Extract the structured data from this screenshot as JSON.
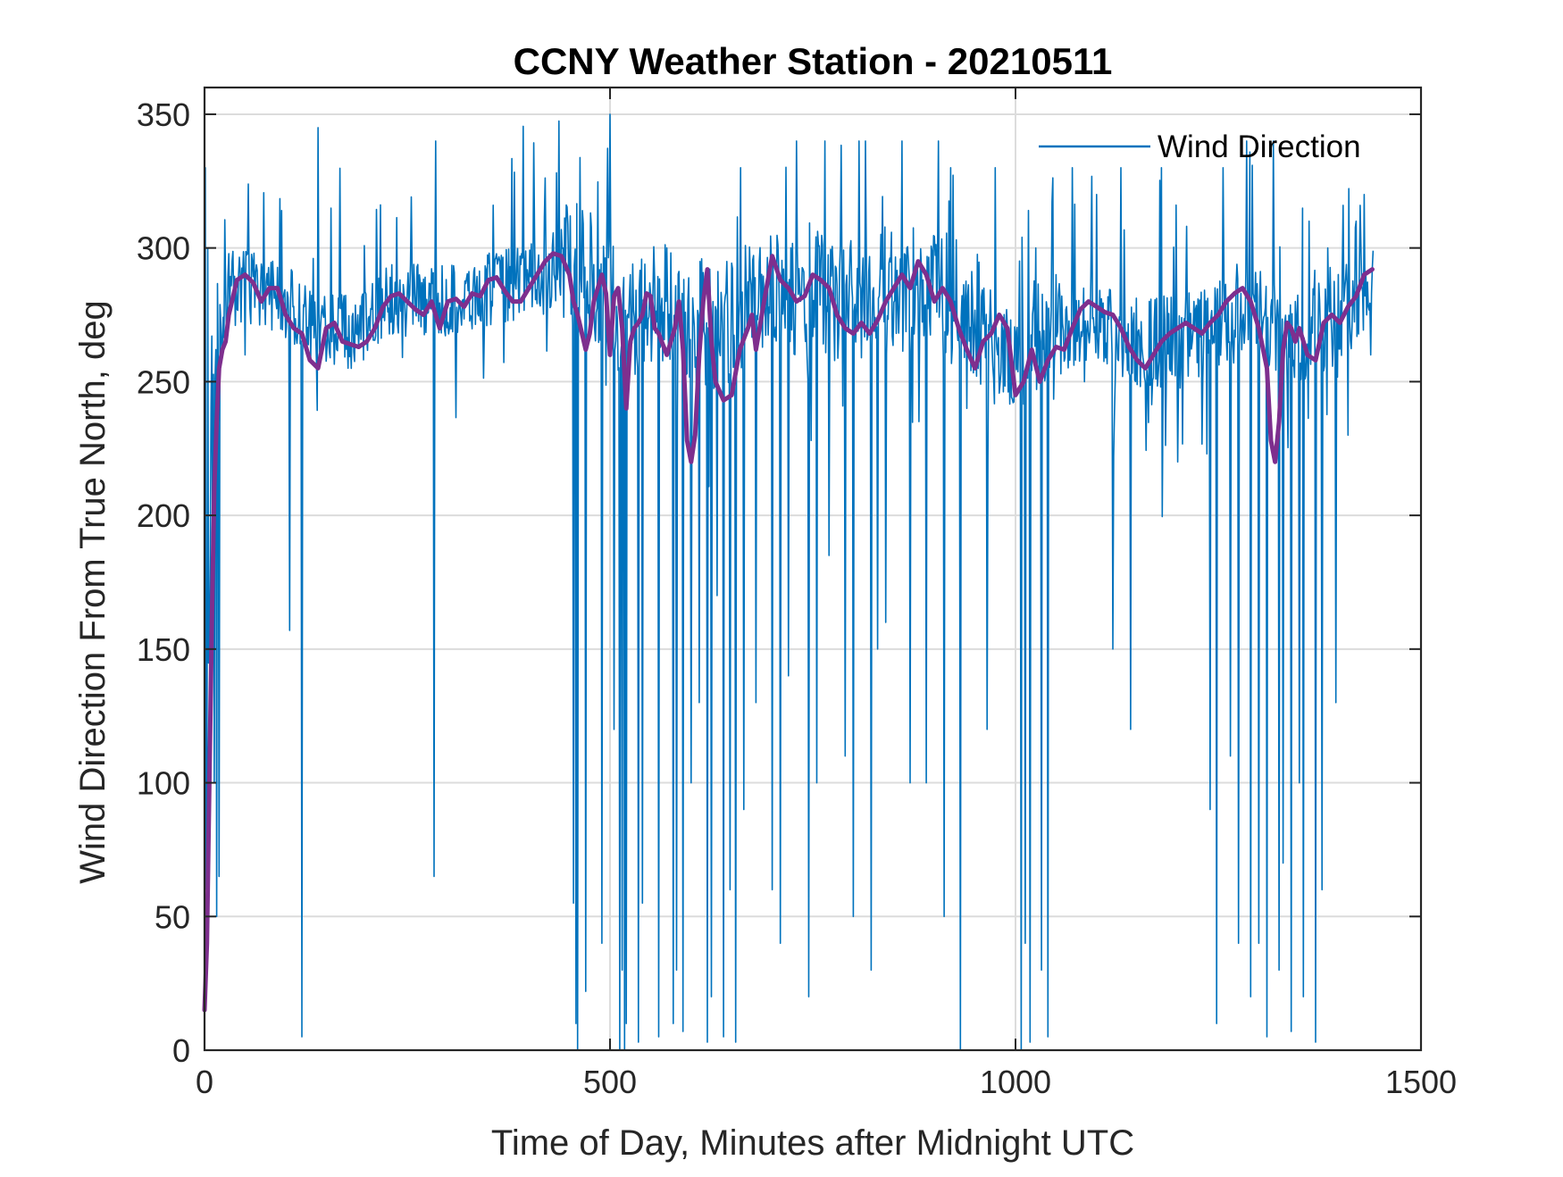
{
  "chart_data": {
    "type": "line",
    "title": "CCNY Weather Station - 20210511",
    "xlabel": "Time of Day, Minutes after Midnight UTC",
    "ylabel": "Wind Direction From True North, deg",
    "xlim": [
      0,
      1500
    ],
    "ylim": [
      0,
      360
    ],
    "xticks": [
      0,
      500,
      1000,
      1500
    ],
    "yticks": [
      0,
      50,
      100,
      150,
      200,
      250,
      300,
      350
    ],
    "grid": true,
    "legend": {
      "position": "top-right",
      "entries": [
        "Wind Direction"
      ]
    },
    "colors": {
      "raw": "#0072bd",
      "smoothed": "#7e2f8e",
      "grid": "#dcdcdc",
      "axes": "#262626"
    },
    "series": [
      {
        "name": "Wind Direction",
        "style": "thin-line",
        "sample_interval_min": 1,
        "x_range": [
          0,
          1441
        ],
        "baseline": {
          "x": [
            0,
            10,
            30,
            60,
            100,
            140,
            180,
            230,
            300,
            360,
            420,
            450,
            480,
            520,
            560,
            590,
            630,
            680,
            720,
            800,
            850,
            900,
            950,
            1000,
            1050,
            1100,
            1150,
            1200,
            1250,
            1300,
            1330,
            1370,
            1400,
            1440
          ],
          "y": [
            20,
            250,
            285,
            285,
            280,
            270,
            268,
            280,
            280,
            285,
            290,
            295,
            290,
            270,
            280,
            275,
            270,
            280,
            282,
            280,
            285,
            285,
            275,
            255,
            270,
            270,
            265,
            265,
            270,
            275,
            265,
            270,
            275,
            290
          ]
        },
        "sharp_drops": [
          [
            1,
            330
          ],
          [
            4,
            300
          ],
          [
            8,
            240
          ],
          [
            10,
            180
          ],
          [
            12,
            100
          ],
          [
            15,
            50
          ],
          [
            18,
            65
          ],
          [
            50,
            260
          ],
          [
            105,
            157
          ],
          [
            120,
            5
          ],
          [
            140,
            345
          ],
          [
            283,
            65
          ],
          [
            285,
            340
          ],
          [
            442,
            300
          ],
          [
            455,
            55
          ],
          [
            458,
            10
          ],
          [
            460,
            0
          ],
          [
            470,
            22
          ],
          [
            478,
            290
          ],
          [
            490,
            40
          ],
          [
            500,
            350
          ],
          [
            505,
            120
          ],
          [
            512,
            0
          ],
          [
            515,
            30
          ],
          [
            518,
            0
          ],
          [
            520,
            10
          ],
          [
            525,
            290
          ],
          [
            535,
            3
          ],
          [
            540,
            55
          ],
          [
            560,
            5
          ],
          [
            570,
            300
          ],
          [
            578,
            10
          ],
          [
            582,
            30
          ],
          [
            590,
            7
          ],
          [
            600,
            100
          ],
          [
            610,
            130
          ],
          [
            620,
            3
          ],
          [
            625,
            20
          ],
          [
            632,
            170
          ],
          [
            640,
            5
          ],
          [
            648,
            60
          ],
          [
            655,
            3
          ],
          [
            665,
            90
          ],
          [
            680,
            130
          ],
          [
            700,
            60
          ],
          [
            710,
            40
          ],
          [
            720,
            140
          ],
          [
            730,
            340
          ],
          [
            745,
            20
          ],
          [
            755,
            100
          ],
          [
            765,
            340
          ],
          [
            770,
            185
          ],
          [
            790,
            110
          ],
          [
            800,
            50
          ],
          [
            807,
            340
          ],
          [
            815,
            340
          ],
          [
            822,
            30
          ],
          [
            830,
            150
          ],
          [
            840,
            160
          ],
          [
            860,
            340
          ],
          [
            870,
            100
          ],
          [
            880,
            280
          ],
          [
            890,
            100
          ],
          [
            905,
            340
          ],
          [
            912,
            50
          ],
          [
            920,
            330
          ],
          [
            932,
            0
          ],
          [
            940,
            240
          ],
          [
            965,
            120
          ],
          [
            975,
            330
          ],
          [
            990,
            270
          ],
          [
            1007,
            0
          ],
          [
            1012,
            40
          ],
          [
            1018,
            3
          ],
          [
            1025,
            300
          ],
          [
            1032,
            30
          ],
          [
            1040,
            5
          ],
          [
            1050,
            290
          ],
          [
            1070,
            330
          ],
          [
            1085,
            250
          ],
          [
            1100,
            320
          ],
          [
            1120,
            150
          ],
          [
            1130,
            330
          ],
          [
            1142,
            120
          ],
          [
            1160,
            250
          ],
          [
            1180,
            330
          ],
          [
            1200,
            220
          ],
          [
            1220,
            280
          ],
          [
            1240,
            90
          ],
          [
            1248,
            10
          ],
          [
            1256,
            330
          ],
          [
            1265,
            110
          ],
          [
            1275,
            40
          ],
          [
            1285,
            340
          ],
          [
            1290,
            20
          ],
          [
            1300,
            40
          ],
          [
            1310,
            5
          ],
          [
            1318,
            340
          ],
          [
            1325,
            30
          ],
          [
            1330,
            70
          ],
          [
            1335,
            250
          ],
          [
            1340,
            7
          ],
          [
            1345,
            280
          ],
          [
            1350,
            100
          ],
          [
            1355,
            20
          ],
          [
            1362,
            310
          ],
          [
            1370,
            3
          ],
          [
            1378,
            60
          ],
          [
            1385,
            300
          ],
          [
            1395,
            130
          ],
          [
            1410,
            230
          ],
          [
            1420,
            310
          ],
          [
            1430,
            320
          ],
          [
            1438,
            260
          ]
        ]
      },
      {
        "name": "",
        "style": "thick-line",
        "x": [
          0,
          3,
          6,
          9,
          12,
          15,
          18,
          22,
          26,
          30,
          40,
          50,
          60,
          70,
          80,
          90,
          100,
          110,
          120,
          130,
          140,
          150,
          160,
          170,
          180,
          190,
          200,
          210,
          220,
          230,
          240,
          250,
          260,
          270,
          280,
          290,
          300,
          310,
          320,
          330,
          340,
          350,
          360,
          370,
          380,
          390,
          400,
          410,
          420,
          430,
          440,
          450,
          455,
          460,
          470,
          475,
          480,
          490,
          495,
          500,
          505,
          510,
          515,
          520,
          525,
          530,
          535,
          540,
          545,
          550,
          555,
          560,
          570,
          580,
          585,
          590,
          595,
          600,
          605,
          610,
          615,
          620,
          625,
          630,
          640,
          650,
          660,
          670,
          675,
          680,
          690,
          700,
          710,
          720,
          730,
          740,
          750,
          760,
          770,
          780,
          790,
          800,
          810,
          820,
          830,
          840,
          850,
          860,
          870,
          880,
          890,
          900,
          910,
          920,
          930,
          940,
          950,
          960,
          970,
          980,
          990,
          1000,
          1010,
          1020,
          1030,
          1040,
          1050,
          1060,
          1070,
          1080,
          1090,
          1100,
          1110,
          1120,
          1130,
          1140,
          1150,
          1160,
          1170,
          1180,
          1190,
          1200,
          1210,
          1220,
          1230,
          1240,
          1250,
          1260,
          1270,
          1280,
          1290,
          1300,
          1310,
          1315,
          1320,
          1325,
          1330,
          1335,
          1340,
          1345,
          1350,
          1360,
          1370,
          1380,
          1390,
          1400,
          1410,
          1420,
          1430,
          1440
        ],
        "y": [
          15,
          40,
          100,
          160,
          210,
          235,
          255,
          262,
          265,
          275,
          288,
          290,
          287,
          280,
          285,
          285,
          275,
          270,
          268,
          258,
          255,
          270,
          272,
          265,
          264,
          263,
          265,
          270,
          278,
          282,
          283,
          280,
          277,
          275,
          280,
          270,
          280,
          281,
          278,
          283,
          282,
          288,
          289,
          284,
          280,
          280,
          285,
          290,
          295,
          298,
          297,
          290,
          280,
          275,
          262,
          268,
          280,
          290,
          283,
          260,
          282,
          285,
          270,
          240,
          265,
          270,
          272,
          275,
          283,
          282,
          270,
          268,
          260,
          270,
          280,
          262,
          228,
          220,
          230,
          260,
          280,
          292,
          265,
          250,
          243,
          245,
          262,
          270,
          275,
          262,
          280,
          297,
          288,
          285,
          280,
          282,
          290,
          288,
          285,
          275,
          270,
          268,
          272,
          268,
          273,
          280,
          285,
          290,
          285,
          295,
          290,
          280,
          285,
          280,
          270,
          262,
          255,
          265,
          268,
          275,
          270,
          245,
          250,
          262,
          250,
          258,
          263,
          262,
          270,
          277,
          280,
          278,
          276,
          275,
          270,
          263,
          258,
          255,
          260,
          265,
          268,
          270,
          272,
          270,
          268,
          272,
          275,
          280,
          283,
          285,
          280,
          270,
          255,
          228,
          220,
          235,
          262,
          272,
          270,
          265,
          270,
          260,
          258,
          272,
          275,
          272,
          278,
          282,
          290,
          292
        ]
      }
    ]
  }
}
